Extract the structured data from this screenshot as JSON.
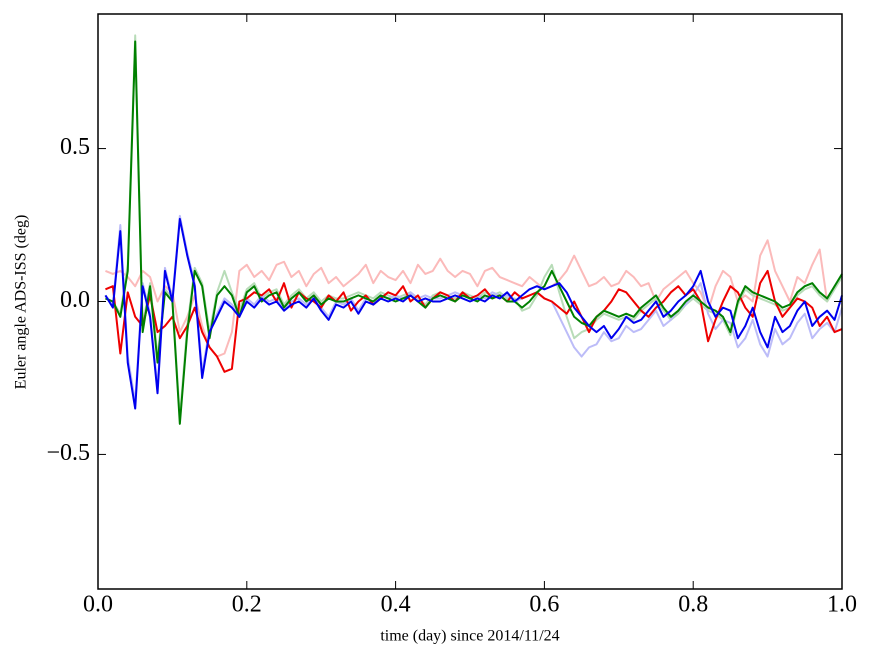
{
  "chart_data": {
    "type": "line",
    "xlabel": "time (day) since 2014/11/24",
    "ylabel": "Euler angle ADS-ISS (deg)",
    "xlim": [
      0,
      1
    ],
    "ylim": [
      -0.94,
      0.94
    ],
    "xticks": [
      {
        "value": 0,
        "label": "0.0"
      },
      0.2,
      0.4,
      0.6,
      0.8,
      {
        "value": 1,
        "label": "1.0"
      }
    ],
    "yticks": [
      {
        "value": -0.5,
        "label": "−0.5"
      },
      {
        "value": 0,
        "label": "0.0"
      },
      0.5
    ],
    "x": [
      0.01,
      0.02,
      0.03,
      0.04,
      0.05,
      0.06,
      0.07,
      0.08,
      0.09,
      0.1,
      0.11,
      0.12,
      0.13,
      0.14,
      0.15,
      0.16,
      0.17,
      0.18,
      0.19,
      0.2,
      0.21,
      0.22,
      0.23,
      0.24,
      0.25,
      0.26,
      0.27,
      0.28,
      0.29,
      0.3,
      0.31,
      0.32,
      0.33,
      0.34,
      0.35,
      0.36,
      0.37,
      0.38,
      0.39,
      0.4,
      0.41,
      0.42,
      0.43,
      0.44,
      0.45,
      0.46,
      0.47,
      0.48,
      0.49,
      0.5,
      0.51,
      0.52,
      0.53,
      0.54,
      0.55,
      0.56,
      0.57,
      0.58,
      0.59,
      0.6,
      0.61,
      0.62,
      0.63,
      0.64,
      0.65,
      0.66,
      0.67,
      0.68,
      0.69,
      0.7,
      0.71,
      0.72,
      0.73,
      0.74,
      0.75,
      0.76,
      0.77,
      0.78,
      0.79,
      0.8,
      0.81,
      0.82,
      0.83,
      0.84,
      0.85,
      0.86,
      0.87,
      0.88,
      0.89,
      0.9,
      0.91,
      0.92,
      0.93,
      0.94,
      0.95,
      0.96,
      0.97,
      0.98,
      0.99,
      1
    ],
    "series": [
      {
        "color": "#fbbaba",
        "values": [
          0.1,
          0.09,
          0.1,
          0.08,
          0.05,
          0.1,
          0.08,
          0.0,
          0.05,
          0.03,
          -0.1,
          -0.05,
          0.02,
          -0.08,
          -0.15,
          -0.18,
          -0.17,
          -0.1,
          0.1,
          0.12,
          0.08,
          0.1,
          0.07,
          0.12,
          0.13,
          0.08,
          0.1,
          0.05,
          0.09,
          0.11,
          0.06,
          0.08,
          0.05,
          0.07,
          0.09,
          0.12,
          0.06,
          0.1,
          0.08,
          0.07,
          0.1,
          0.06,
          0.12,
          0.09,
          0.1,
          0.14,
          0.1,
          0.08,
          0.1,
          0.09,
          0.05,
          0.1,
          0.11,
          0.08,
          0.07,
          0.06,
          0.05,
          0.08,
          0.06,
          0.04,
          0.05,
          0.07,
          0.1,
          0.15,
          0.1,
          0.05,
          0.06,
          0.08,
          0.05,
          0.06,
          0.1,
          0.08,
          0.05,
          0.06,
          0.0,
          0.04,
          0.06,
          0.08,
          0.1,
          0.06,
          0.03,
          -0.03,
          0.05,
          0.1,
          0.08,
          0.0,
          0.02,
          0.0,
          0.15,
          0.2,
          0.1,
          0.05,
          0.0,
          0.08,
          0.06,
          0.12,
          0.17,
          0.0,
          0.05,
          0.08
        ]
      },
      {
        "color": "#b8dcb8",
        "values": [
          0.01,
          0.0,
          -0.04,
          0.12,
          0.87,
          -0.08,
          0.06,
          -0.18,
          0.04,
          0.01,
          -0.38,
          -0.08,
          0.11,
          0.06,
          -0.1,
          0.03,
          0.1,
          0.03,
          -0.03,
          0.04,
          0.06,
          0.01,
          0.03,
          0.04,
          -0.01,
          0.02,
          0.04,
          0.01,
          0.03,
          0.0,
          0.02,
          0.01,
          0.01,
          0.02,
          0.03,
          0.02,
          0.01,
          0.03,
          0.02,
          0.01,
          0.02,
          0.03,
          0.01,
          -0.01,
          0.02,
          0.03,
          0.02,
          0.01,
          0.03,
          0.02,
          0.01,
          0.03,
          0.02,
          0.03,
          0.01,
          0.01,
          -0.03,
          -0.02,
          0.02,
          0.08,
          0.12,
          0.03,
          -0.05,
          -0.12,
          -0.1,
          -0.09,
          -0.06,
          -0.04,
          -0.05,
          -0.06,
          -0.05,
          -0.06,
          -0.03,
          -0.01,
          0.01,
          -0.03,
          -0.06,
          -0.04,
          -0.01,
          0.01,
          -0.01,
          -0.03,
          -0.04,
          -0.06,
          -0.11,
          -0.01,
          0.04,
          0.02,
          0.01,
          0.0,
          -0.01,
          -0.03,
          -0.02,
          0.02,
          0.04,
          0.05,
          0.02,
          0.0,
          0.04,
          0.08
        ]
      },
      {
        "color": "#bcbcf8",
        "values": [
          0.02,
          -0.01,
          0.25,
          -0.18,
          -0.33,
          0.06,
          -0.04,
          -0.28,
          0.11,
          0.01,
          0.28,
          0.16,
          0.06,
          -0.23,
          -0.09,
          -0.04,
          0.01,
          -0.01,
          -0.04,
          0.01,
          -0.01,
          0.02,
          0.0,
          0.01,
          -0.02,
          0.0,
          0.01,
          -0.01,
          0.02,
          -0.02,
          -0.05,
          0.0,
          -0.01,
          0.01,
          -0.03,
          0.01,
          0.0,
          0.02,
          0.01,
          0.02,
          0.01,
          0.03,
          0.01,
          0.02,
          0.01,
          0.01,
          0.02,
          0.03,
          0.02,
          0.01,
          0.02,
          0.01,
          0.03,
          0.02,
          0.02,
          0.0,
          0.01,
          0.02,
          0.03,
          0.01,
          0.0,
          -0.05,
          -0.1,
          -0.15,
          -0.18,
          -0.15,
          -0.14,
          -0.1,
          -0.13,
          -0.12,
          -0.08,
          -0.1,
          -0.09,
          -0.06,
          -0.03,
          -0.08,
          -0.06,
          -0.03,
          -0.01,
          0.02,
          0.06,
          -0.04,
          -0.09,
          -0.06,
          -0.07,
          -0.15,
          -0.12,
          -0.06,
          -0.14,
          -0.18,
          -0.09,
          -0.14,
          -0.12,
          -0.07,
          -0.04,
          -0.12,
          -0.09,
          -0.07,
          -0.1,
          -0.02
        ]
      },
      {
        "color": "#ee0000",
        "values": [
          0.04,
          0.05,
          -0.17,
          0.03,
          -0.05,
          -0.08,
          0.02,
          -0.1,
          -0.08,
          -0.05,
          -0.12,
          -0.08,
          -0.02,
          -0.1,
          -0.15,
          -0.18,
          -0.23,
          -0.22,
          0.0,
          0.01,
          0.03,
          0.02,
          0.04,
          0.0,
          0.06,
          -0.02,
          0.03,
          0.01,
          0.0,
          -0.02,
          0.02,
          0.0,
          0.03,
          -0.03,
          0.0,
          0.02,
          -0.01,
          0.01,
          0.03,
          0.02,
          0.05,
          0.0,
          0.02,
          -0.02,
          0.01,
          0.03,
          0.02,
          0.0,
          0.03,
          0.01,
          0.02,
          0.04,
          0.01,
          0.02,
          0.0,
          0.03,
          0.01,
          0.02,
          0.03,
          0.01,
          0.0,
          -0.02,
          -0.04,
          0.0,
          -0.05,
          -0.1,
          -0.05,
          -0.03,
          0.0,
          0.04,
          0.03,
          0.0,
          -0.03,
          -0.05,
          -0.02,
          0.0,
          0.03,
          0.05,
          0.02,
          0.04,
          0.0,
          -0.13,
          -0.06,
          0.0,
          0.05,
          0.03,
          -0.02,
          -0.05,
          0.06,
          0.1,
          0.0,
          -0.05,
          -0.02,
          0.01,
          0.0,
          -0.02,
          -0.08,
          -0.05,
          -0.1,
          -0.09
        ]
      },
      {
        "color": "#008000",
        "values": [
          0.01,
          0.0,
          -0.05,
          0.1,
          0.85,
          -0.1,
          0.05,
          -0.2,
          0.03,
          0.0,
          -0.4,
          -0.1,
          0.1,
          0.05,
          -0.12,
          0.02,
          0.05,
          0.02,
          -0.05,
          0.03,
          0.05,
          0.0,
          0.02,
          0.03,
          -0.02,
          0.01,
          0.03,
          0.0,
          0.02,
          -0.01,
          0.01,
          0.0,
          0.0,
          0.01,
          0.02,
          0.01,
          0.0,
          0.02,
          0.01,
          0.0,
          0.01,
          0.02,
          0.0,
          -0.02,
          0.01,
          0.02,
          0.01,
          0.0,
          0.02,
          0.01,
          0.0,
          0.02,
          0.01,
          0.02,
          0.0,
          0.0,
          -0.02,
          0.0,
          0.03,
          0.05,
          0.1,
          0.05,
          0.0,
          -0.05,
          -0.07,
          -0.08,
          -0.05,
          -0.03,
          -0.04,
          -0.05,
          -0.04,
          -0.05,
          -0.02,
          0.0,
          0.02,
          -0.02,
          -0.05,
          -0.03,
          0.0,
          0.02,
          0.0,
          -0.02,
          -0.03,
          -0.05,
          -0.1,
          0.0,
          0.05,
          0.03,
          0.02,
          0.01,
          0.0,
          -0.02,
          -0.01,
          0.03,
          0.05,
          0.06,
          0.03,
          0.01,
          0.05,
          0.09
        ]
      },
      {
        "color": "#0000ee",
        "values": [
          0.02,
          -0.02,
          0.23,
          -0.2,
          -0.35,
          0.05,
          -0.05,
          -0.3,
          0.1,
          0.0,
          0.27,
          0.15,
          0.05,
          -0.25,
          -0.1,
          -0.05,
          0.0,
          -0.02,
          -0.05,
          0.0,
          -0.02,
          0.01,
          -0.01,
          0.0,
          -0.03,
          -0.01,
          0.0,
          -0.02,
          0.01,
          -0.03,
          -0.06,
          -0.01,
          -0.02,
          0.0,
          -0.04,
          0.0,
          -0.01,
          0.01,
          0.0,
          0.01,
          0.0,
          0.02,
          0.0,
          0.01,
          0.0,
          0.0,
          0.01,
          0.02,
          0.01,
          0.0,
          0.01,
          0.0,
          0.02,
          0.01,
          0.03,
          0.0,
          0.02,
          0.04,
          0.05,
          0.04,
          0.05,
          0.06,
          0.03,
          -0.02,
          -0.05,
          -0.08,
          -0.1,
          -0.08,
          -0.12,
          -0.09,
          -0.05,
          -0.07,
          -0.06,
          -0.03,
          0.0,
          -0.05,
          -0.03,
          0.0,
          0.02,
          0.05,
          0.1,
          0.0,
          -0.05,
          -0.02,
          -0.03,
          -0.12,
          -0.08,
          -0.02,
          -0.1,
          -0.15,
          -0.05,
          -0.1,
          -0.08,
          -0.03,
          0.0,
          -0.08,
          -0.05,
          -0.03,
          -0.06,
          0.02
        ]
      }
    ]
  }
}
